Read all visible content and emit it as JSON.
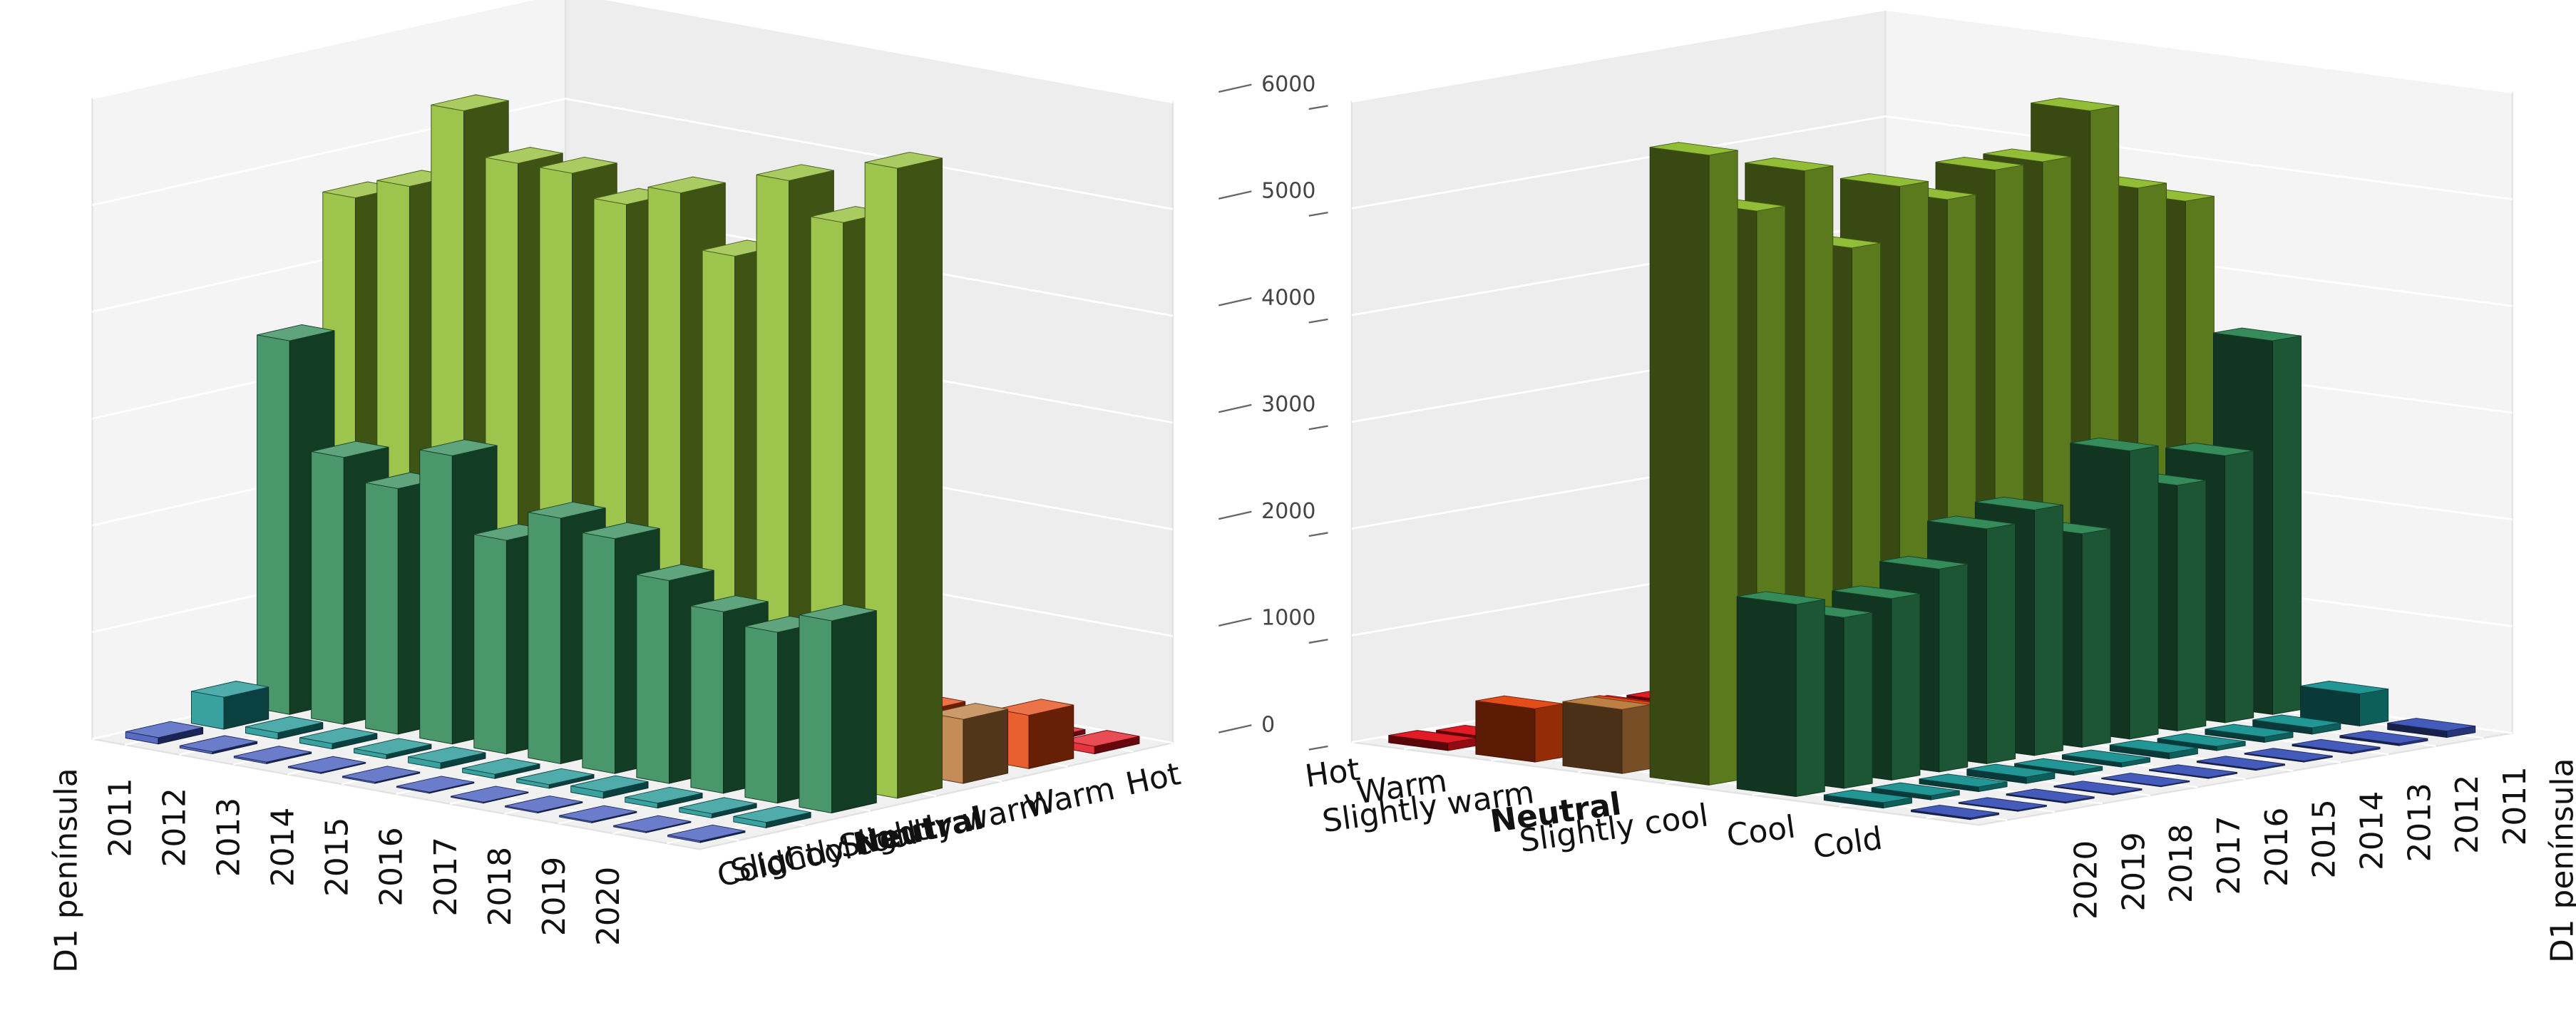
{
  "chart_data": {
    "type": "bar3d",
    "categories": [
      "D1 península",
      "2011",
      "2012",
      "2013",
      "2014",
      "2015",
      "2016",
      "2017",
      "2018",
      "2019",
      "2020"
    ],
    "series": [
      {
        "name": "Cold",
        "color": "#3a52b8",
        "values": [
          60,
          20,
          15,
          10,
          12,
          10,
          8,
          10,
          12,
          10,
          15
        ]
      },
      {
        "name": "Cool",
        "color": "#16908e",
        "values": [
          300,
          60,
          50,
          40,
          55,
          40,
          35,
          60,
          45,
          40,
          50
        ]
      },
      {
        "name": "Slightly cool",
        "color": "#2b8552",
        "values": [
          3500,
          2500,
          2300,
          2700,
          2000,
          2300,
          2200,
          1900,
          1700,
          1600,
          1800
        ]
      },
      {
        "name": "Neutral",
        "color": "#8cba2c",
        "values": [
          4700,
          4900,
          5700,
          5300,
          5300,
          5100,
          5300,
          4800,
          5600,
          5300,
          5900
        ]
      },
      {
        "name": "Slightly warm",
        "color": "#b8783a",
        "values": [
          900,
          600,
          700,
          500,
          800,
          600,
          900,
          500,
          700,
          400,
          600
        ]
      },
      {
        "name": "Warm",
        "color": "#e4440c",
        "values": [
          250,
          300,
          200,
          350,
          250,
          300,
          450,
          200,
          350,
          250,
          500
        ]
      },
      {
        "name": "Hot",
        "color": "#e0101c",
        "values": [
          80,
          60,
          50,
          70,
          40,
          60,
          90,
          50,
          60,
          40,
          70
        ]
      }
    ],
    "highlight": "Neutral",
    "zlim": [
      0,
      6000
    ],
    "zticks": [
      0,
      1000,
      2000,
      3000,
      4000,
      5000,
      6000
    ],
    "grid": true
  }
}
